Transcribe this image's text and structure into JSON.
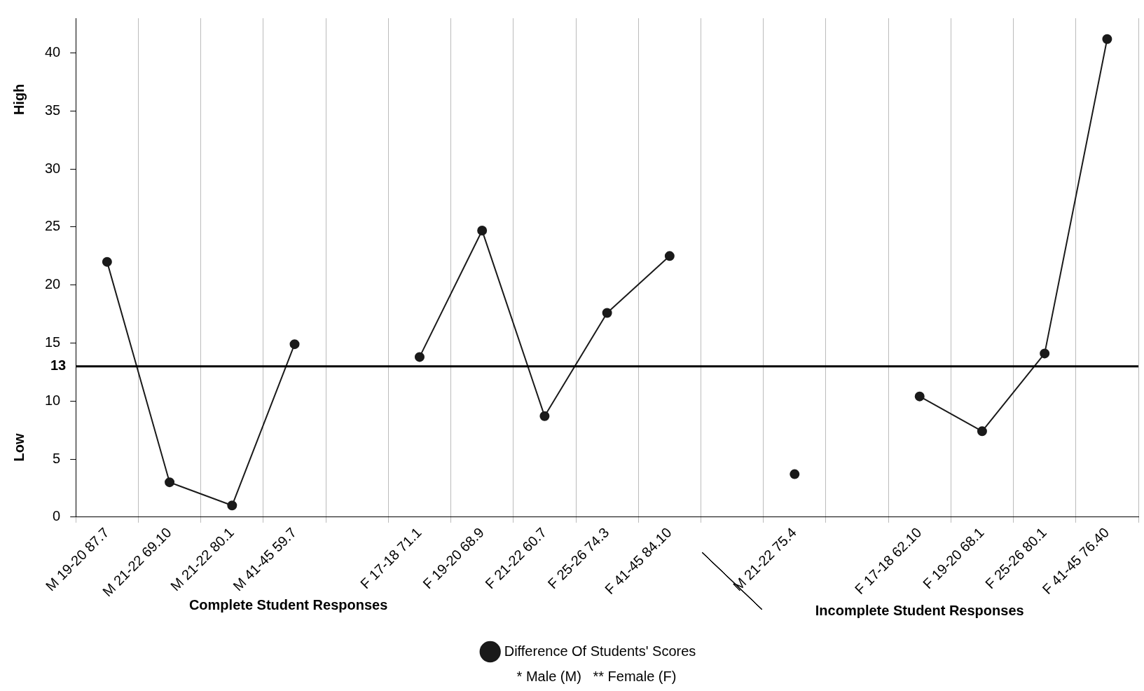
{
  "chart_data": {
    "type": "line",
    "categories": [
      "M 19-20 87.7",
      "M 21-22 69.10",
      "M 21-22 80.1",
      "M 41-45 59.7",
      null,
      "F 17-18 71.1",
      "F 19-20 68.9",
      "F 21-22 60.7",
      "F 25-26 74.3",
      "F 41-45 84.10",
      null,
      "M 21-22 75.4",
      null,
      "F 17-18 62.10",
      "F 19-20 68.1",
      "F 25-26 80.1",
      "F 41-45 76.40"
    ],
    "series": [
      {
        "name": "Difference Of Students' Scores",
        "color": "#1a1a1a",
        "values": [
          22,
          3,
          1,
          14.9,
          null,
          13.8,
          24.7,
          8.7,
          17.6,
          22.5,
          null,
          3.7,
          null,
          10.4,
          7.4,
          14.1,
          41.2
        ]
      }
    ],
    "ylim": [
      0,
      43
    ],
    "yticks": [
      0,
      5,
      10,
      15,
      20,
      25,
      30,
      35,
      40
    ],
    "ref_lines": [
      {
        "axis": "y",
        "value": 13,
        "label": "13",
        "color": "#000000"
      }
    ],
    "annotations": [
      "High",
      "Low",
      "Complete Student Responses",
      "Incomplete Student Responses",
      "* Male (M)   ** Female (F)"
    ],
    "grid": "x",
    "legend": "bottom",
    "marker": "circle",
    "line_style": "solid"
  }
}
